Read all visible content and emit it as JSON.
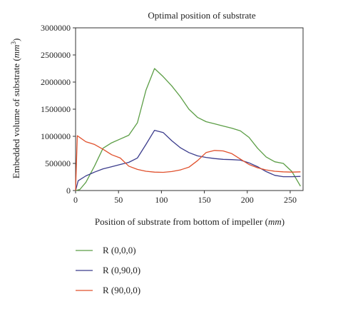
{
  "chart_data": {
    "type": "line",
    "title": "Optimal position of substrate",
    "xlabel": "Position of substrate from bottom of impeller",
    "xlabel_unit": "mm",
    "ylabel": "Embedded volume of substrate",
    "ylabel_unit_base": "mm",
    "ylabel_unit_exp": "3",
    "xlim": [
      0,
      265
    ],
    "ylim": [
      0,
      3000000
    ],
    "x_ticks": [
      0,
      50,
      100,
      150,
      200,
      250
    ],
    "y_ticks": [
      0,
      500000,
      1000000,
      1500000,
      2000000,
      2500000,
      3000000
    ],
    "x_tick_labels": [
      "0",
      "50",
      "100",
      "150",
      "200",
      "250"
    ],
    "y_tick_labels": [
      "0",
      "500000",
      "1000000",
      "1500000",
      "2000000",
      "2500000",
      "3000000"
    ],
    "grid": false,
    "legend_position": "bottom-left, below plot",
    "series": [
      {
        "name": "R (0,0,0)",
        "color": "#5c9e46",
        "x": [
          0,
          5,
          12,
          22,
          32,
          42,
          52,
          62,
          72,
          82,
          92,
          102,
          112,
          122,
          132,
          142,
          152,
          162,
          172,
          182,
          192,
          202,
          212,
          222,
          232,
          242,
          252,
          262
        ],
        "y": [
          0,
          20000,
          150000,
          450000,
          780000,
          880000,
          950000,
          1020000,
          1250000,
          1850000,
          2250000,
          2100000,
          1930000,
          1730000,
          1500000,
          1350000,
          1270000,
          1230000,
          1190000,
          1150000,
          1100000,
          980000,
          780000,
          620000,
          530000,
          500000,
          350000,
          80000
        ]
      },
      {
        "name": "R (0,90,0)",
        "color": "#3b3c8c",
        "x": [
          0,
          3,
          12,
          22,
          32,
          42,
          52,
          62,
          72,
          82,
          92,
          102,
          112,
          122,
          132,
          142,
          152,
          162,
          172,
          182,
          192,
          202,
          212,
          222,
          232,
          242,
          252,
          262
        ],
        "y": [
          0,
          180000,
          270000,
          340000,
          400000,
          440000,
          480000,
          520000,
          600000,
          850000,
          1110000,
          1070000,
          920000,
          790000,
          700000,
          640000,
          610000,
          590000,
          575000,
          570000,
          560000,
          510000,
          440000,
          350000,
          280000,
          255000,
          255000,
          260000
        ]
      },
      {
        "name": "R (90,0,0)",
        "color": "#e0502c",
        "x": [
          0,
          2,
          12,
          22,
          32,
          42,
          52,
          62,
          72,
          82,
          92,
          102,
          112,
          122,
          132,
          142,
          152,
          162,
          172,
          182,
          192,
          202,
          212,
          222,
          232,
          242,
          252,
          262
        ],
        "y": [
          0,
          1010000,
          900000,
          850000,
          760000,
          660000,
          600000,
          450000,
          390000,
          355000,
          340000,
          335000,
          350000,
          380000,
          430000,
          550000,
          700000,
          740000,
          730000,
          680000,
          580000,
          480000,
          420000,
          380000,
          355000,
          345000,
          340000,
          345000
        ]
      }
    ]
  }
}
